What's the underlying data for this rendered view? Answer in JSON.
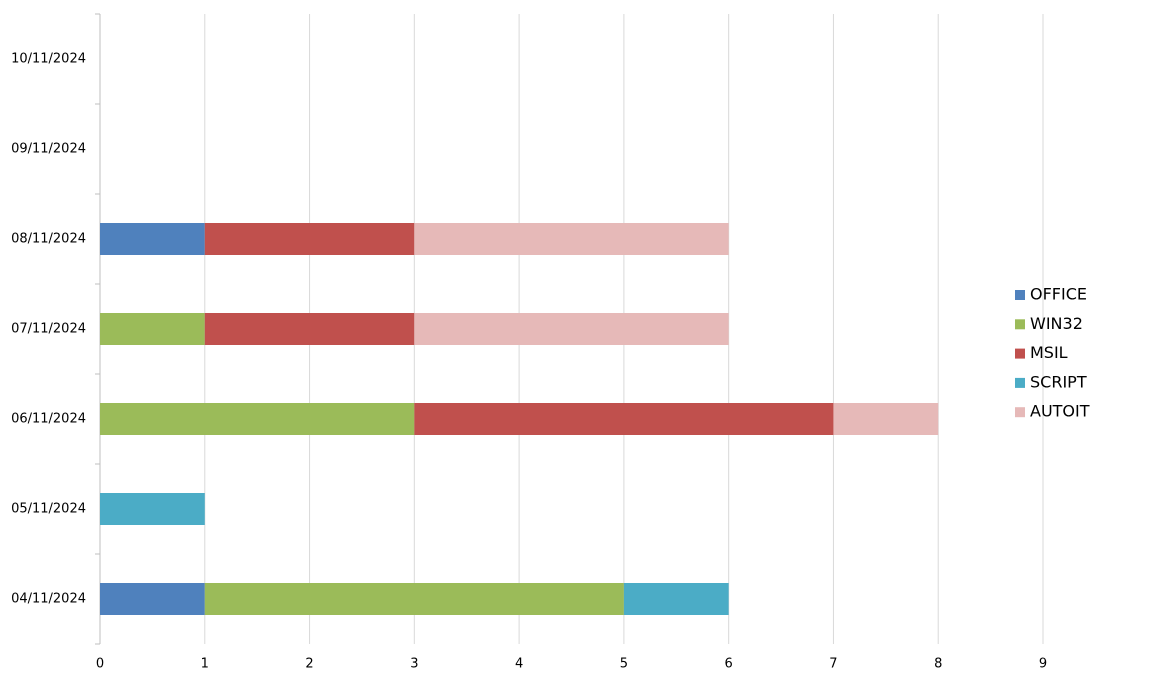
{
  "chart_data": {
    "type": "stacked-bar-horizontal",
    "categories": [
      "04/11/2024",
      "05/11/2024",
      "06/11/2024",
      "07/11/2024",
      "08/11/2024",
      "09/11/2024",
      "10/11/2024"
    ],
    "series": [
      {
        "name": "OFFICE",
        "color": "#4f81bd",
        "values": [
          1,
          0,
          0,
          0,
          1,
          0,
          0
        ]
      },
      {
        "name": "WIN32",
        "color": "#9bbb59",
        "values": [
          4,
          0,
          3,
          1,
          0,
          0,
          0
        ]
      },
      {
        "name": "MSIL",
        "color": "#c0504d",
        "values": [
          0,
          0,
          4,
          2,
          2,
          0,
          0
        ]
      },
      {
        "name": "SCRIPT",
        "color": "#4bacc6",
        "values": [
          1,
          1,
          0,
          0,
          0,
          0,
          0
        ]
      },
      {
        "name": "AUTOIT",
        "color": "#e6b9b8",
        "values": [
          0,
          0,
          1,
          3,
          3,
          0,
          0
        ]
      }
    ],
    "xlim": [
      0,
      9
    ],
    "xticks": [
      0,
      1,
      2,
      3,
      4,
      5,
      6,
      7,
      8,
      9
    ],
    "grid": true,
    "legend": "right"
  }
}
